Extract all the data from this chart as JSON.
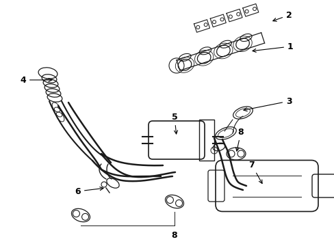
{
  "background_color": "#ffffff",
  "line_color": "#1a1a1a",
  "label_color": "#000000",
  "figsize": [
    4.89,
    3.6
  ],
  "dpi": 100,
  "label_fontsize": 9,
  "lw": 1.0
}
